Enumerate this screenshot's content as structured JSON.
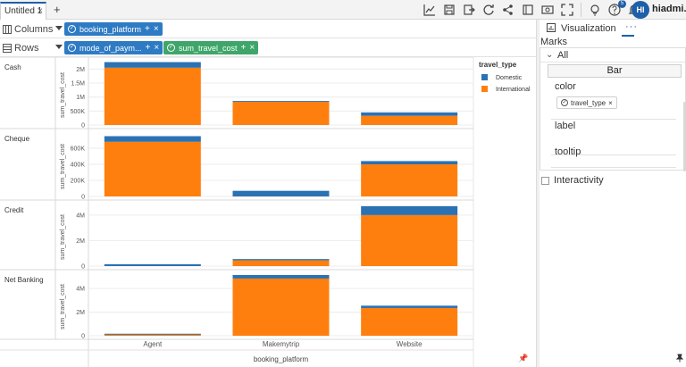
{
  "topbar": {
    "tab_label": "Untitled 1",
    "tab_close": "×",
    "add_tab": "+",
    "notification_count": "5",
    "avatar_initials": "HI",
    "username": "hiadmi..."
  },
  "shelves": {
    "columns_label": "Columns",
    "rows_label": "Rows",
    "columns_pills": [
      {
        "label": "booking_platform",
        "color": "#2e7bc4"
      }
    ],
    "rows_pills": [
      {
        "label": "mode_of_paym...",
        "color": "#2e7bc4"
      },
      {
        "label": "sum_travel_cost",
        "color": "#3fa66a"
      }
    ],
    "pill_plus": "+",
    "pill_remove": "×"
  },
  "panel": {
    "visualization_label": "Visualization",
    "more_label": "···",
    "marks_title": "Marks",
    "all_label": "All",
    "mark_type": "Bar",
    "color_label": "color",
    "color_pill": "travel_type",
    "color_pill_remove": "×",
    "label_label": "label",
    "tooltip_label": "tooltip",
    "interactivity_label": "Interactivity"
  },
  "chart_data": {
    "type": "bar",
    "stacked": true,
    "row_field": "mode_of_payment",
    "x_label": "booking_platform",
    "y_label": "sum_travel_cost",
    "categories": [
      "Agent",
      "Makemytrip",
      "Website"
    ],
    "legend_title": "travel_type",
    "legend_position": "right",
    "series_names": [
      "Domestic",
      "International"
    ],
    "series_colors": [
      "#2b72b3",
      "#ff7f0e"
    ],
    "panels": [
      {
        "label": "Cash",
        "ymax": 2300000,
        "ticks": [
          0,
          500000,
          1000000,
          1500000,
          2000000
        ],
        "tick_labels": [
          "0",
          "500K",
          "1M",
          "1.5M",
          "2M"
        ],
        "domestic": [
          200000,
          30000,
          120000
        ],
        "international": [
          2050000,
          830000,
          330000
        ]
      },
      {
        "label": "Cheque",
        "ymax": 800000,
        "ticks": [
          0,
          200000,
          400000,
          600000
        ],
        "tick_labels": [
          "0",
          "200K",
          "400K",
          "600K"
        ],
        "domestic": [
          70000,
          70000,
          40000
        ],
        "international": [
          680000,
          0,
          400000
        ]
      },
      {
        "label": "Credit",
        "ymax": 4900000,
        "ticks": [
          0,
          2000000,
          4000000
        ],
        "tick_labels": [
          "0",
          "2M",
          "4M"
        ],
        "domestic": [
          150000,
          100000,
          700000
        ],
        "international": [
          0,
          450000,
          4000000
        ]
      },
      {
        "label": "Net Banking",
        "ymax": 5300000,
        "ticks": [
          0,
          2000000,
          4000000
        ],
        "tick_labels": [
          "0",
          "2M",
          "4M"
        ],
        "domestic": [
          50000,
          300000,
          200000
        ],
        "international": [
          120000,
          4850000,
          2350000
        ]
      }
    ]
  }
}
